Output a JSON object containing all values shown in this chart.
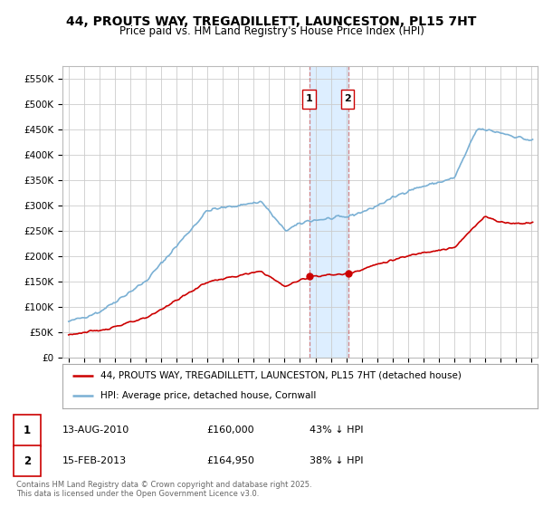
{
  "title_line1": "44, PROUTS WAY, TREGADILLETT, LAUNCESTON, PL15 7HT",
  "title_line2": "Price paid vs. HM Land Registry's House Price Index (HPI)",
  "legend_label_red": "44, PROUTS WAY, TREGADILLETT, LAUNCESTON, PL15 7HT (detached house)",
  "legend_label_blue": "HPI: Average price, detached house, Cornwall",
  "footer": "Contains HM Land Registry data © Crown copyright and database right 2025.\nThis data is licensed under the Open Government Licence v3.0.",
  "transaction1_date": "13-AUG-2010",
  "transaction1_price": "£160,000",
  "transaction1_hpi": "43% ↓ HPI",
  "transaction1_year": 2010.62,
  "transaction2_date": "15-FEB-2013",
  "transaction2_price": "£164,950",
  "transaction2_hpi": "38% ↓ HPI",
  "transaction2_year": 2013.12,
  "t1_price_val": 160000,
  "t2_price_val": 164950,
  "red_color": "#cc0000",
  "blue_color": "#7ab0d4",
  "highlight_color": "#ddeeff",
  "grid_color": "#cccccc",
  "background_color": "#ffffff",
  "ylim": [
    0,
    575000
  ],
  "yticks": [
    0,
    50000,
    100000,
    150000,
    200000,
    250000,
    300000,
    350000,
    400000,
    450000,
    500000,
    550000
  ],
  "ytick_labels": [
    "£0",
    "£50K",
    "£100K",
    "£150K",
    "£200K",
    "£250K",
    "£300K",
    "£350K",
    "£400K",
    "£450K",
    "£500K",
    "£550K"
  ]
}
